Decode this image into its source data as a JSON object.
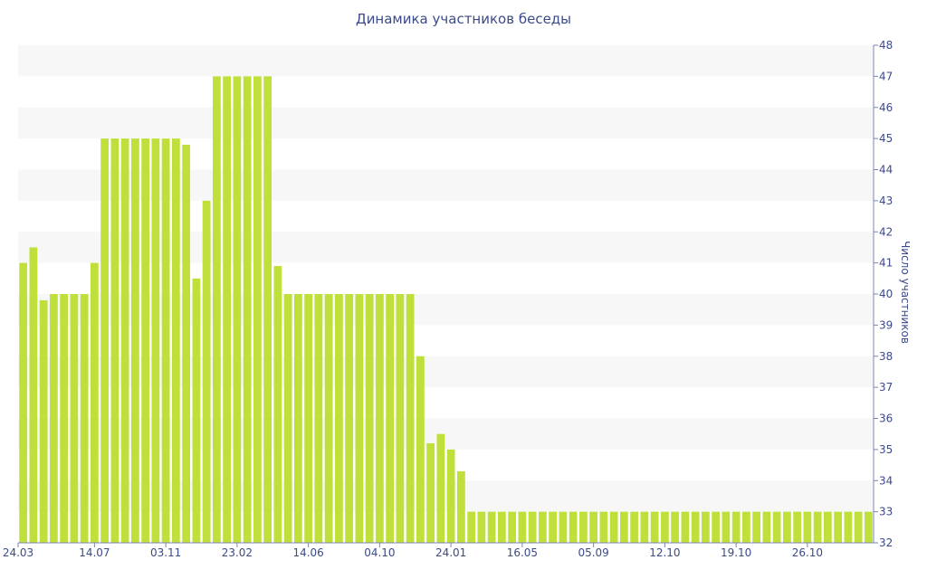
{
  "chart_data": {
    "type": "bar",
    "title": "Динамика участников беседы",
    "xlabel": "",
    "ylabel": "Число участников",
    "ylim": [
      32,
      48
    ],
    "yticks": [
      32,
      33,
      34,
      35,
      36,
      37,
      38,
      39,
      40,
      41,
      42,
      43,
      44,
      45,
      46,
      47,
      48
    ],
    "y_axis_side": "right",
    "grid": "horizontal alternating bands",
    "x_tick_labels": [
      {
        "label": "24.03",
        "index": 0
      },
      {
        "label": "14.07",
        "index": 7
      },
      {
        "label": "03.11",
        "index": 14
      },
      {
        "label": "23.02",
        "index": 21
      },
      {
        "label": "14.06",
        "index": 28
      },
      {
        "label": "04.10",
        "index": 35
      },
      {
        "label": "24.01",
        "index": 42
      },
      {
        "label": "16.05",
        "index": 49
      },
      {
        "label": "05.09",
        "index": 56
      },
      {
        "label": "12.10",
        "index": 63
      },
      {
        "label": "19.10",
        "index": 70
      },
      {
        "label": "26.10",
        "index": 77
      }
    ],
    "values": [
      41,
      41.5,
      39.8,
      40,
      40,
      40,
      40,
      41,
      45,
      45,
      45,
      45,
      45,
      45,
      45,
      45,
      44.8,
      40.5,
      43,
      47,
      47,
      47,
      47,
      47,
      47,
      40.9,
      40,
      40,
      40,
      40,
      40,
      40,
      40,
      40,
      40,
      40,
      40,
      40,
      40,
      38,
      35.2,
      35.5,
      35,
      34.3,
      33,
      33,
      33,
      33,
      33,
      33,
      33,
      33,
      33,
      33,
      33,
      33,
      33,
      33,
      33,
      33,
      33,
      33,
      33,
      33,
      33,
      33,
      33,
      33,
      33,
      33,
      33,
      33,
      33,
      33,
      33,
      33,
      33,
      33,
      33,
      33,
      33,
      33,
      33,
      33
    ],
    "bar_color": "#bfe03a",
    "band_color": "#f7f7f7",
    "text_color": "#3b4a8a"
  }
}
